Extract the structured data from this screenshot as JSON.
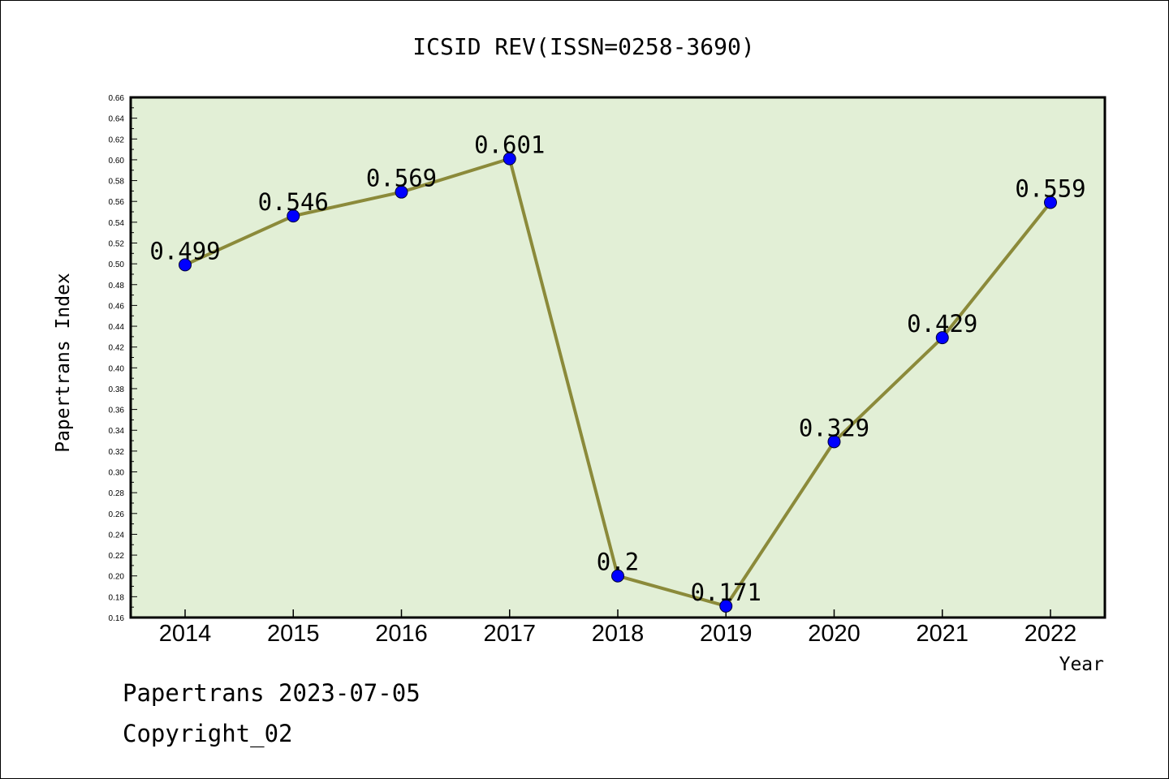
{
  "chart_data": {
    "type": "line",
    "title": "ICSID REV(ISSN=0258-3690)",
    "xlabel": "Year",
    "ylabel": "Papertrans Index",
    "categories": [
      "2014",
      "2015",
      "2016",
      "2017",
      "2018",
      "2019",
      "2020",
      "2021",
      "2022"
    ],
    "series": [
      {
        "values": [
          0.499,
          0.546,
          0.569,
          0.601,
          0.2,
          0.171,
          0.329,
          0.429,
          0.559
        ],
        "labels": [
          "0.499",
          "0.546",
          "0.569",
          "0.601",
          "0.2",
          "0.171",
          "0.329",
          "0.429",
          "0.559"
        ],
        "line_color": "#8b8a3a",
        "marker_color": "#0000ff"
      }
    ],
    "ylim": [
      0.16,
      0.66
    ],
    "ytick_step": 0.02,
    "plot_background": "#e2efd6",
    "grid": false,
    "legend": "none"
  },
  "footer": {
    "line1": "Papertrans 2023-07-05",
    "line2": "Copyright_02"
  }
}
